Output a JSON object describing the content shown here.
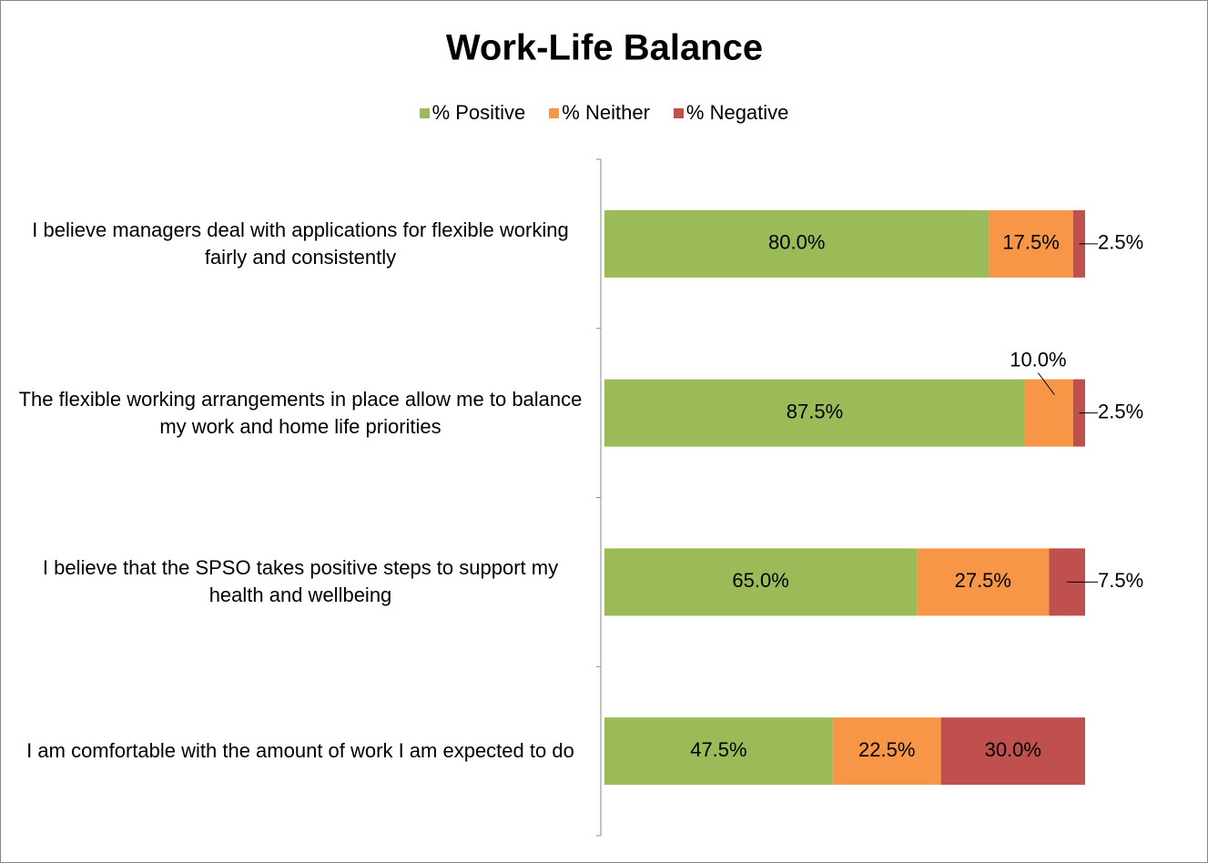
{
  "chart_data": {
    "type": "stacked-bar-horizontal",
    "title": "Work-Life Balance",
    "categories": [
      "I believe managers deal with applications for flexible working fairly and consistently",
      "The flexible working arrangements in place allow me to balance my work and home life priorities",
      "I believe that the SPSO takes positive steps to support my health and wellbeing",
      "I am comfortable with the amount of work I am expected to do"
    ],
    "series": [
      {
        "name": "% Positive",
        "color": "#9bbb59",
        "values": [
          80,
          87.5,
          65,
          47.5
        ],
        "value_labels": [
          "80.0%",
          "87.5%",
          "65.0%",
          "47.5%"
        ]
      },
      {
        "name": "% Neither",
        "color": "#f79646",
        "values": [
          17.5,
          10,
          27.5,
          22.5
        ],
        "value_labels": [
          "17.5%",
          "10.0%",
          "27.5%",
          "22.5%"
        ]
      },
      {
        "name": "% Negative",
        "color": "#c0504d",
        "values": [
          2.5,
          2.5,
          7.5,
          30
        ],
        "value_labels": [
          "2.5%",
          "2.5%",
          "7.5%",
          "30.0%"
        ]
      }
    ],
    "legend": "top"
  }
}
